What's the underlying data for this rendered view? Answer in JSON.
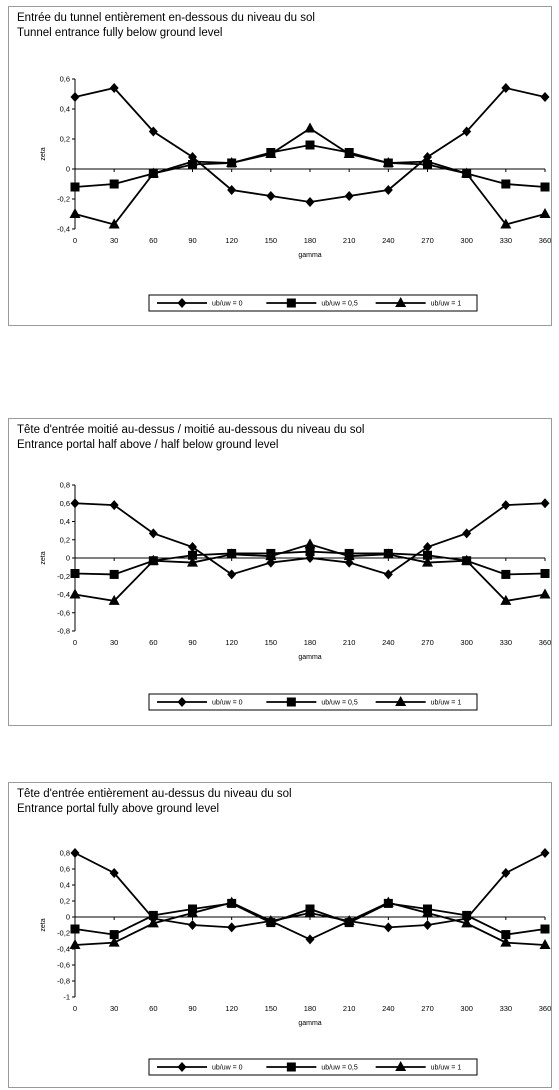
{
  "chart_data": [
    {
      "type": "line",
      "title": "Entrée du tunnel entièrement en-dessous du niveau du sol",
      "subtitle": "Tunnel entrance fully below ground level",
      "xlabel": "gamma",
      "ylabel": "zeta",
      "x": [
        0,
        30,
        60,
        90,
        120,
        150,
        180,
        210,
        240,
        270,
        300,
        330,
        360
      ],
      "ylim": [
        -0.4,
        0.6
      ],
      "yticks": [
        "0,6",
        "0,4",
        "0,2",
        "0",
        "-0,2",
        "-0,4"
      ],
      "ytick_values": [
        0.6,
        0.4,
        0.2,
        0,
        -0.2,
        -0.4
      ],
      "grid": false,
      "legend_position": "bottom",
      "series": [
        {
          "name": "ub/uw = 0",
          "marker": "diamond",
          "values": [
            0.48,
            0.54,
            0.25,
            0.08,
            -0.14,
            -0.18,
            -0.22,
            -0.18,
            -0.14,
            0.08,
            0.25,
            0.54,
            0.48
          ]
        },
        {
          "name": "ub/uw = 0,5",
          "marker": "square",
          "values": [
            -0.12,
            -0.1,
            -0.03,
            0.03,
            0.04,
            0.11,
            0.16,
            0.11,
            0.04,
            0.03,
            -0.03,
            -0.1,
            -0.12
          ]
        },
        {
          "name": "ub/uw = 1",
          "marker": "triangle",
          "values": [
            -0.3,
            -0.37,
            -0.03,
            0.05,
            0.04,
            0.1,
            0.27,
            0.1,
            0.04,
            0.05,
            -0.03,
            -0.37,
            -0.3
          ]
        }
      ]
    },
    {
      "type": "line",
      "title": "Tête d'entrée moitié au-dessus / moitié au-dessous du niveau du sol",
      "subtitle": "Entrance portal half above / half below ground level",
      "xlabel": "gamma",
      "ylabel": "zeta",
      "x": [
        0,
        30,
        60,
        90,
        120,
        150,
        180,
        210,
        240,
        270,
        300,
        330,
        360
      ],
      "ylim": [
        -0.8,
        0.8
      ],
      "yticks": [
        "0,8",
        "0,6",
        "0,4",
        "0,2",
        "0",
        "-0,2",
        "-0,4",
        "-0,6",
        "-0,8"
      ],
      "ytick_values": [
        0.8,
        0.6,
        0.4,
        0.2,
        0,
        -0.2,
        -0.4,
        -0.6,
        -0.8
      ],
      "grid": false,
      "legend_position": "bottom",
      "series": [
        {
          "name": "ub/uw = 0",
          "marker": "diamond",
          "values": [
            0.6,
            0.58,
            0.27,
            0.12,
            -0.18,
            -0.05,
            0.0,
            -0.05,
            -0.18,
            0.12,
            0.27,
            0.58,
            0.6
          ]
        },
        {
          "name": "ub/uw = 0,5",
          "marker": "square",
          "values": [
            -0.17,
            -0.18,
            -0.03,
            0.03,
            0.05,
            0.05,
            0.07,
            0.05,
            0.05,
            0.03,
            -0.03,
            -0.18,
            -0.17
          ]
        },
        {
          "name": "ub/uw = 1",
          "marker": "triangle",
          "values": [
            -0.4,
            -0.47,
            -0.03,
            -0.05,
            0.04,
            0.02,
            0.15,
            0.02,
            0.04,
            -0.05,
            -0.03,
            -0.47,
            -0.4
          ]
        }
      ]
    },
    {
      "type": "line",
      "title": "Tête d'entrée entièrement au-dessus du niveau du sol",
      "subtitle": "Entrance portal fully above ground level",
      "xlabel": "gamma",
      "ylabel": "zeta",
      "x": [
        0,
        30,
        60,
        90,
        120,
        150,
        180,
        210,
        240,
        270,
        300,
        330,
        360
      ],
      "ylim": [
        -1,
        0.8
      ],
      "yticks": [
        "0,8",
        "0,6",
        "0,4",
        "0,2",
        "0",
        "-0,2",
        "-0,4",
        "-0,6",
        "-0,8",
        "-1"
      ],
      "ytick_values": [
        0.8,
        0.6,
        0.4,
        0.2,
        0,
        -0.2,
        -0.4,
        -0.6,
        -0.8,
        -1
      ],
      "grid": false,
      "legend_position": "bottom",
      "series": [
        {
          "name": "ub/uw = 0",
          "marker": "diamond",
          "values": [
            0.8,
            0.55,
            -0.02,
            -0.1,
            -0.13,
            -0.05,
            -0.28,
            -0.05,
            -0.13,
            -0.1,
            -0.02,
            0.55,
            0.8
          ]
        },
        {
          "name": "ub/uw = 0,5",
          "marker": "square",
          "values": [
            -0.15,
            -0.22,
            0.02,
            0.1,
            0.17,
            -0.07,
            0.1,
            -0.07,
            0.17,
            0.1,
            0.02,
            -0.22,
            -0.15
          ]
        },
        {
          "name": "ub/uw = 1",
          "marker": "triangle",
          "values": [
            -0.35,
            -0.32,
            -0.08,
            0.05,
            0.18,
            -0.05,
            0.05,
            -0.05,
            0.18,
            0.05,
            -0.08,
            -0.32,
            -0.35
          ]
        }
      ]
    }
  ]
}
